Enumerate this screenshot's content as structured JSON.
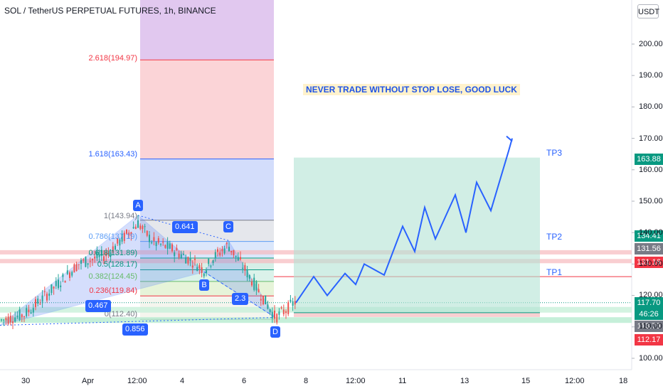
{
  "header": {
    "title": "SOL / TetherUS PERPETUAL FUTURES, 1h, BINANCE",
    "currency": "USDT"
  },
  "annotation": {
    "banner": "NEVER TRADE WITHOUT STOP LOSE,  GOOD LUCK"
  },
  "targets": [
    {
      "label": "TP3",
      "price": 163.88
    },
    {
      "label": "TP2",
      "price": 134.41
    },
    {
      "label": "TP1",
      "price": 126.0
    }
  ],
  "fib_levels": [
    {
      "label": "2.618(194.97)",
      "price": 194.97,
      "color": "#f23645"
    },
    {
      "label": "1.618(163.43)",
      "price": 163.43,
      "color": "#2962ff"
    },
    {
      "label": "1(143.94)",
      "price": 143.94,
      "color": "#787b86"
    },
    {
      "label": "0.786(137.19)",
      "price": 137.19,
      "color": "#5b9cf6"
    },
    {
      "label": "0.618(131.89)",
      "price": 131.89,
      "color": "#089981"
    },
    {
      "label": "0.5(128.17)",
      "price": 128.17,
      "color": "#089981"
    },
    {
      "label": "0.382(124.45)",
      "price": 124.45,
      "color": "#66bb6a"
    },
    {
      "label": "0.236(119.84)",
      "price": 119.84,
      "color": "#f23645"
    },
    {
      "label": "0(112.40)",
      "price": 112.4,
      "color": "#787b86"
    }
  ],
  "pattern": {
    "points": [
      {
        "label": "A",
        "price": 145.5
      },
      {
        "label": "B",
        "price": 127.5
      },
      {
        "label": "C",
        "price": 137.5
      },
      {
        "label": "D",
        "price": 112.6
      }
    ],
    "ratios": [
      "0.641",
      "0.467",
      "2.3",
      "0.856"
    ]
  },
  "price_badges": [
    {
      "value": "163.88",
      "color": "#089981"
    },
    {
      "value": "134.41",
      "color": "#089981"
    },
    {
      "value": "131.56",
      "color": "#787b86"
    },
    {
      "value": "131.16",
      "color": "#f23645"
    },
    {
      "value": "117.70",
      "color": "#089981"
    },
    {
      "value": "46:26",
      "color": "#089981"
    },
    {
      "value": "113.79",
      "color": "#787b86"
    },
    {
      "value": "112.17",
      "color": "#f23645"
    }
  ],
  "chart_data": {
    "type": "line",
    "title": "SOL / TetherUS PERPETUAL FUTURES, 1h, BINANCE",
    "x_ticks": [
      "30",
      "Apr",
      "12:00",
      "4",
      "6",
      "8",
      "12:00",
      "11",
      "13",
      "15",
      "12:00",
      "18"
    ],
    "y_ticks": [
      "200.00",
      "190.00",
      "180.00",
      "170.00",
      "160.00",
      "150.00",
      "140.00",
      "130.00",
      "120.00",
      "110.00",
      "100.00"
    ],
    "ylim": [
      98,
      210
    ],
    "projection": [
      117.7,
      126,
      120,
      127,
      123.5,
      130,
      126.5,
      142,
      134,
      148,
      138,
      152,
      140,
      156,
      147,
      166,
      170
    ],
    "grid": false
  }
}
